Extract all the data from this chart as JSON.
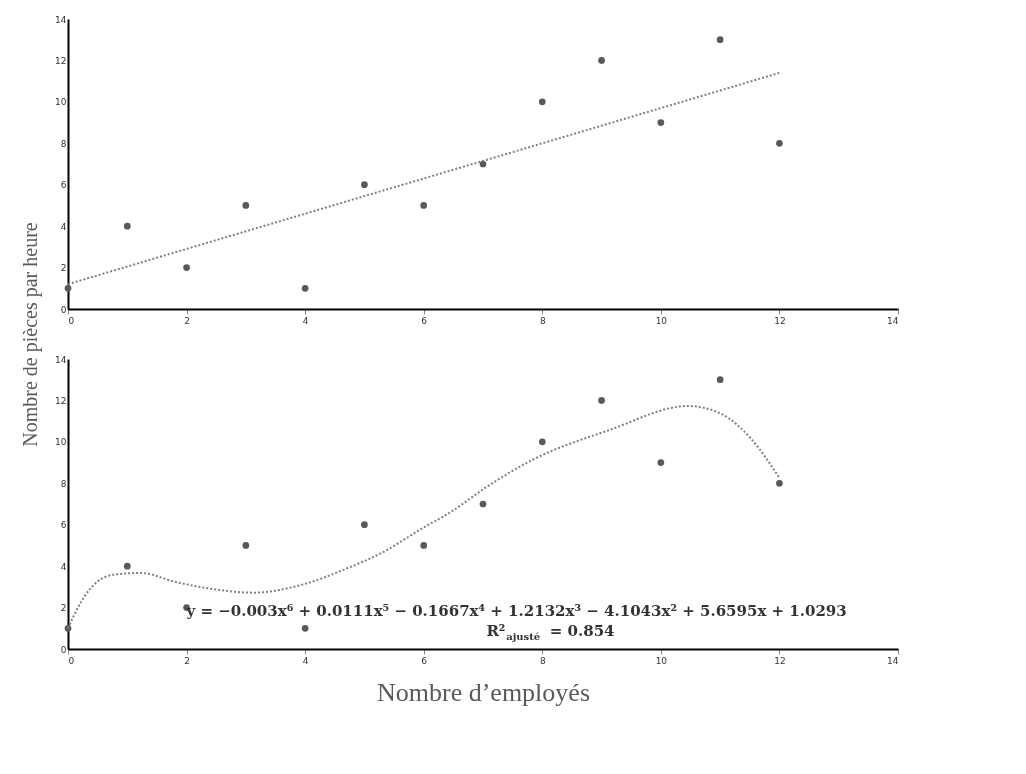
{
  "chart_data": [
    {
      "type": "scatter",
      "ylabel": "Nombre de pièces par heure",
      "xlim": [
        0,
        14
      ],
      "ylim": [
        0,
        14
      ],
      "xticks": [
        0,
        2,
        4,
        6,
        8,
        10,
        12,
        14
      ],
      "yticks": [
        0,
        2,
        4,
        6,
        8,
        10,
        12,
        14
      ],
      "series": [
        {
          "type": "scatter",
          "color": "#595959",
          "marker": "circle",
          "x": [
            0,
            1,
            2,
            3,
            4,
            5,
            6,
            7,
            8,
            9,
            10,
            11,
            12
          ],
          "values": [
            1,
            4,
            2,
            5,
            1,
            6,
            5,
            7,
            10,
            12,
            9,
            13,
            8
          ]
        },
        {
          "type": "line",
          "color": "#808080",
          "line_style": "dotted",
          "x": [
            0,
            12
          ],
          "values": [
            1.2,
            11.4
          ]
        }
      ]
    },
    {
      "type": "scatter",
      "xlabel": "Nombre d’employés",
      "xlim": [
        0,
        14
      ],
      "ylim": [
        0,
        14
      ],
      "xticks": [
        0,
        2,
        4,
        6,
        8,
        10,
        12,
        14
      ],
      "yticks": [
        0,
        2,
        4,
        6,
        8,
        10,
        12,
        14
      ],
      "annotations": [
        "y = −0.003x⁶ + 0.0111x⁵ − 0.1667x⁴ + 1.2132x³ − 4.1043x² + 5.6595x + 1.0293",
        "R²$_{ajusté}$ = 0.854"
      ],
      "series": [
        {
          "type": "scatter",
          "color": "#595959",
          "marker": "circle",
          "x": [
            0,
            1,
            2,
            3,
            4,
            5,
            6,
            7,
            8,
            9,
            10,
            11,
            12
          ],
          "values": [
            1,
            4,
            2,
            5,
            1,
            6,
            5,
            7,
            10,
            12,
            9,
            13,
            8
          ]
        },
        {
          "type": "line",
          "color": "#808080",
          "line_style": "dotted",
          "x": [
            0,
            0.22,
            0.49,
            0.8,
            1.23,
            1.81,
            2.34,
            3.13,
            3.93,
            4.72,
            5.25,
            5.99,
            6.46,
            7.05,
            7.8,
            9.13,
            10.46,
            11.0,
            11.53,
            12
          ],
          "values": [
            1.0,
            2.27,
            3.24,
            3.6,
            3.67,
            3.24,
            2.94,
            2.72,
            3.09,
            3.91,
            4.58,
            5.85,
            6.62,
            7.8,
            9.08,
            10.57,
            11.73,
            11.38,
            10.12,
            8.26
          ]
        }
      ]
    }
  ]
}
